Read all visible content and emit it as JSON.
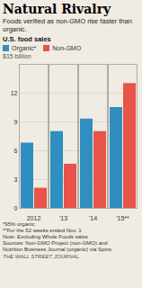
{
  "chart_data": {
    "type": "bar",
    "title": "Natural Rivalry",
    "subtitle": "Foods verified as non-GMO rise faster than organic.",
    "annotations": [
      "U.S. food sales"
    ],
    "ylabel": "$15 billion",
    "categories": [
      "2012",
      "'13",
      "'14",
      "'15**"
    ],
    "series": [
      {
        "name": "Organic*",
        "color": "#2e8fc0",
        "values": [
          6.8,
          8.0,
          9.3,
          10.5
        ]
      },
      {
        "name": "Non-GMO",
        "color": "#e8534a",
        "values": [
          2.1,
          4.6,
          8.0,
          13.0
        ]
      }
    ],
    "ylim": [
      0,
      15
    ],
    "yticks": [
      0,
      3,
      6,
      9,
      12
    ],
    "grid": true,
    "legend": "upper left",
    "footnotes": [
      "*95% organic",
      "**For the 52 weeks ended Nov. 1",
      "Note: Excluding Whole Foods sales",
      "Sources: Non-GMO Project (non-GMO) and",
      "Nutrition Business Journal (organic) via Spins"
    ],
    "source": "THE WALL STREET JOURNAL."
  }
}
